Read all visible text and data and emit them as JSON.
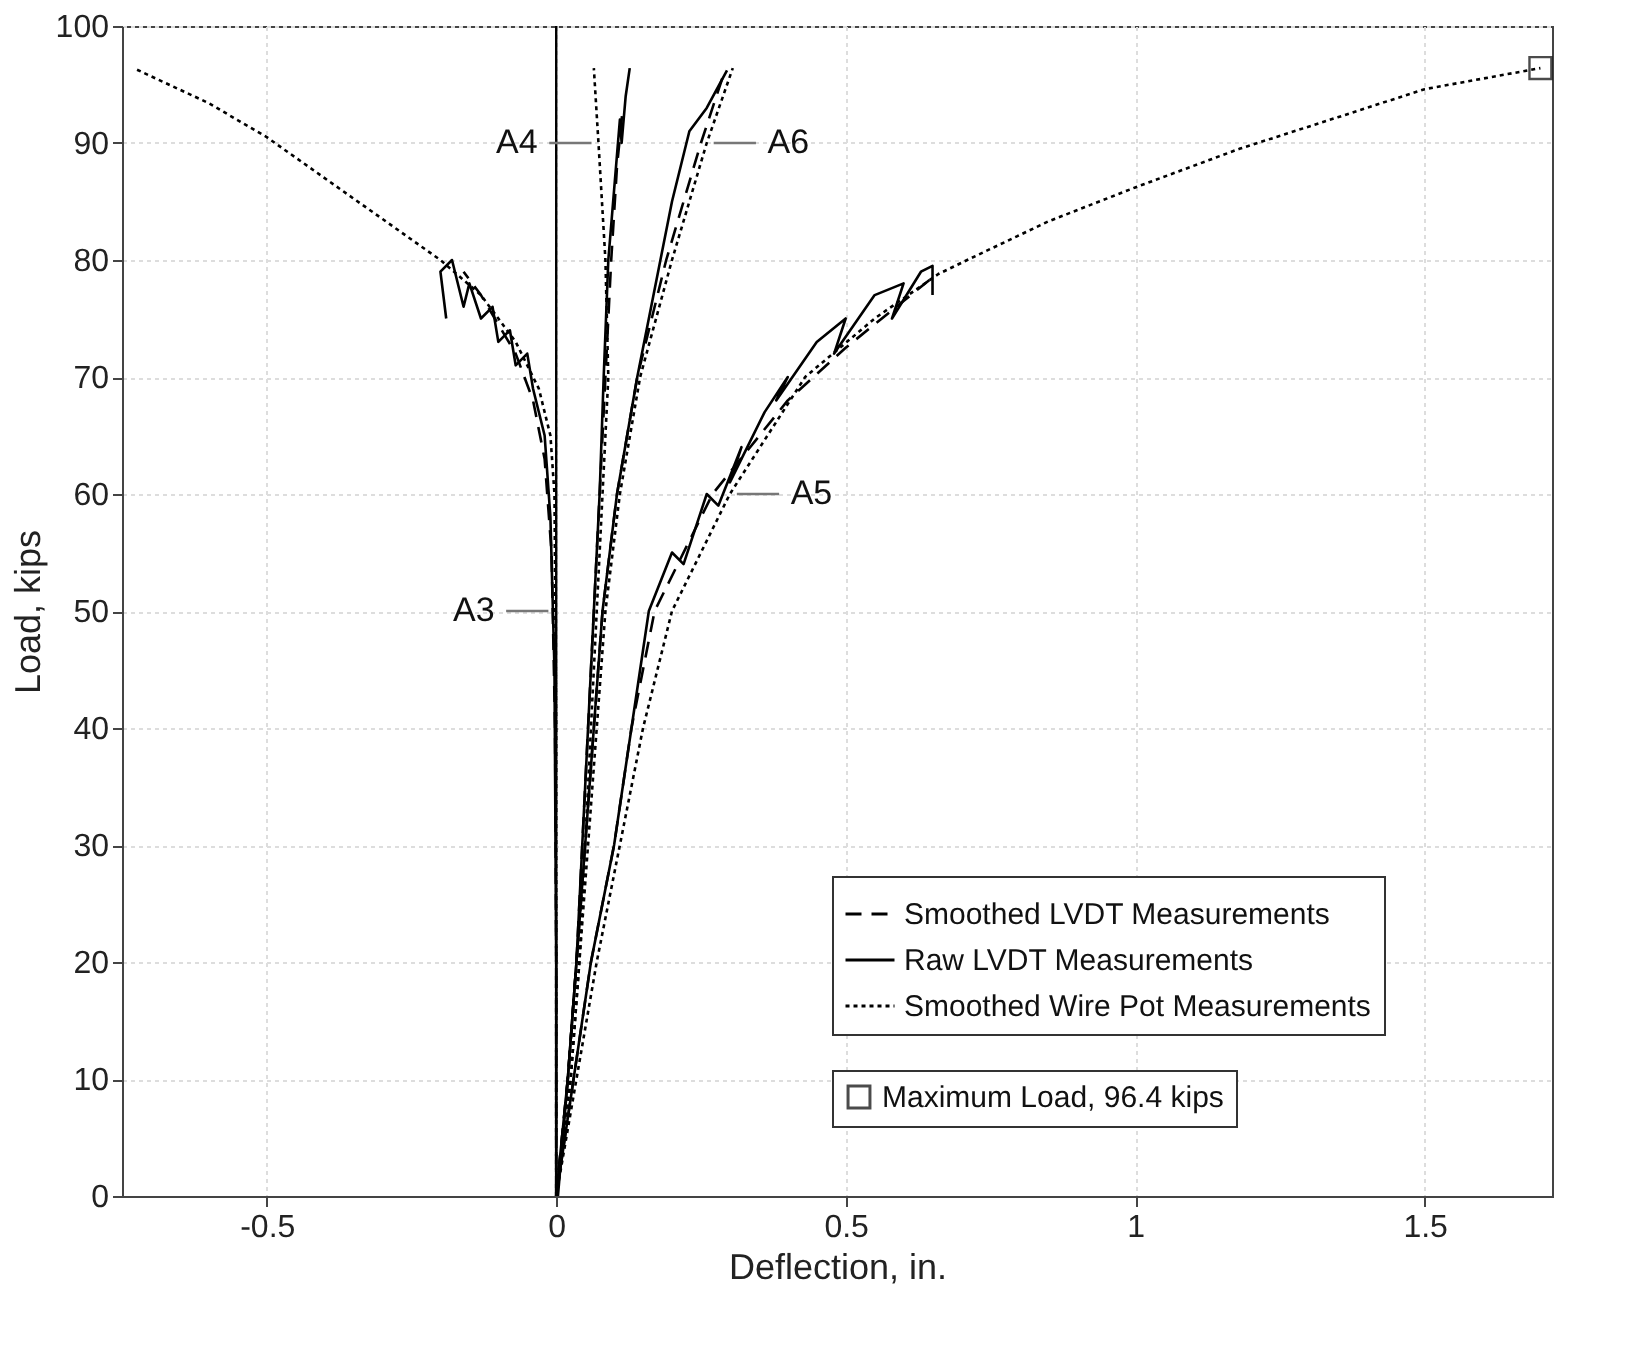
{
  "chart_data": {
    "type": "line",
    "xlabel": "Deflection, in.",
    "ylabel": "Load, kips",
    "xlim": [
      -0.75,
      1.72
    ],
    "ylim": [
      0,
      100
    ],
    "xticks": [
      {
        "value": -0.5,
        "label": "-0.5"
      },
      {
        "value": 0,
        "label": "0"
      },
      {
        "value": 0.5,
        "label": "0.5"
      },
      {
        "value": 1,
        "label": "1"
      },
      {
        "value": 1.5,
        "label": "1.5"
      }
    ],
    "yticks": [
      0,
      10,
      20,
      30,
      40,
      50,
      60,
      70,
      80,
      90,
      100
    ],
    "grid": true,
    "legend": "bottom right",
    "ref_lines": [
      {
        "axis": "x",
        "value": 0,
        "color": "#000000"
      }
    ],
    "annotations": [
      {
        "text": "A3",
        "x": -0.0015,
        "y": 50
      },
      {
        "text": "A4",
        "x": 0.073,
        "y": 90
      },
      {
        "text": "A5",
        "x": 0.3,
        "y": 60
      },
      {
        "text": "A6",
        "x": 0.26,
        "y": 90
      }
    ],
    "series": [
      {
        "name": "Smoothed LVDT Measurements",
        "color": "#000000",
        "line_style": "dashed",
        "x": [
          0,
          0,
          -0.002,
          -0.008,
          -0.02,
          -0.04,
          -0.07,
          -0.1,
          -0.13,
          -0.16
        ],
        "values": [
          0,
          20,
          40,
          55,
          63,
          68,
          72,
          74.5,
          77,
          79
        ]
      },
      {
        "name": "Raw LVDT Measurements",
        "color": "#000000",
        "line_style": "solid",
        "x": [
          0,
          0,
          -0.003,
          -0.01,
          -0.02,
          -0.04,
          -0.05,
          -0.07,
          -0.08,
          -0.1,
          -0.11,
          -0.13,
          -0.15,
          -0.16,
          -0.18,
          -0.2,
          -0.19
        ],
        "values": [
          0,
          20,
          45,
          58,
          65,
          69,
          72,
          71,
          74,
          73,
          76,
          75,
          78,
          76,
          80,
          79,
          75
        ]
      },
      {
        "name": "Smoothed Wire Pot Measurements",
        "color": "#000000",
        "line_style": "dotted",
        "x": [
          0,
          0,
          -0.003,
          -0.01,
          -0.03,
          -0.07,
          -0.13,
          -0.2,
          -0.3,
          -0.4,
          -0.5,
          -0.6,
          -0.73
        ],
        "values": [
          0,
          40,
          60,
          65,
          69,
          73,
          77,
          80,
          83.5,
          87,
          90.5,
          93.4,
          96.4
        ]
      },
      {
        "color": "#000000",
        "line_style": "dashed",
        "x": [
          0,
          0.02,
          0.035,
          0.045,
          0.055,
          0.065,
          0.075,
          0.085,
          0.095,
          0.105,
          0.115
        ],
        "values": [
          0,
          10,
          20,
          30,
          40,
          50,
          60,
          70,
          80,
          88,
          93
        ]
      },
      {
        "color": "#000000",
        "line_style": "solid",
        "x": [
          0,
          0.02,
          0.035,
          0.045,
          0.055,
          0.065,
          0.075,
          0.082,
          0.09,
          0.1,
          0.11,
          0.113,
          0.12,
          0.127
        ],
        "values": [
          0,
          10,
          20,
          30,
          40,
          50,
          60,
          70,
          80,
          86,
          92,
          90,
          94,
          96.4
        ]
      },
      {
        "color": "#000000",
        "line_style": "dotted",
        "x": [
          0,
          0.025,
          0.04,
          0.05,
          0.06,
          0.07,
          0.08,
          0.09,
          0.085,
          0.073,
          0.065
        ],
        "values": [
          0,
          10,
          20,
          30,
          40,
          50,
          60,
          70,
          80,
          90,
          96.4
        ]
      },
      {
        "color": "#000000",
        "line_style": "dashed",
        "x": [
          0,
          0.02,
          0.035,
          0.05,
          0.065,
          0.08,
          0.105,
          0.14,
          0.19,
          0.25,
          0.29
        ],
        "values": [
          0,
          10,
          20,
          30,
          40,
          50,
          60,
          70,
          80,
          90,
          96
        ]
      },
      {
        "color": "#000000",
        "line_style": "solid",
        "x": [
          0.003,
          0.02,
          0.035,
          0.05,
          0.065,
          0.08,
          0.105,
          0.14,
          0.18,
          0.2,
          0.23,
          0.26,
          0.295
        ],
        "values": [
          0,
          10,
          20,
          30,
          40,
          50,
          60,
          70,
          80,
          85,
          91,
          93,
          96.2
        ]
      },
      {
        "color": "#000000",
        "line_style": "dotted",
        "x": [
          0,
          0.025,
          0.04,
          0.055,
          0.07,
          0.085,
          0.11,
          0.145,
          0.2,
          0.26,
          0.305
        ],
        "values": [
          0,
          10,
          20,
          30,
          40,
          50,
          60,
          70,
          80,
          90,
          96.4
        ]
      },
      {
        "color": "#000000",
        "line_style": "dashed",
        "x": [
          0,
          0.03,
          0.06,
          0.1,
          0.13,
          0.17,
          0.27,
          0.4,
          0.5,
          0.6,
          0.65
        ],
        "values": [
          0,
          10,
          20,
          30,
          40,
          50,
          60,
          68,
          72.5,
          76.5,
          78.5
        ]
      },
      {
        "color": "#000000",
        "line_style": "solid",
        "x": [
          0,
          0.03,
          0.06,
          0.1,
          0.13,
          0.16,
          0.2,
          0.22,
          0.26,
          0.28,
          0.32,
          0.3,
          0.36,
          0.4,
          0.38,
          0.45,
          0.5,
          0.48,
          0.55,
          0.6,
          0.58,
          0.63,
          0.65,
          0.65
        ],
        "values": [
          0,
          10,
          20,
          30,
          40,
          50,
          55,
          54,
          60,
          59,
          64,
          61,
          67,
          70,
          68,
          73,
          75,
          72,
          77,
          78,
          75,
          79,
          79.5,
          77
        ]
      },
      {
        "color": "#000000",
        "line_style": "dotted",
        "x": [
          0,
          0.035,
          0.07,
          0.11,
          0.15,
          0.2,
          0.3,
          0.43,
          0.55,
          0.66,
          0.71,
          0.85,
          1.0,
          1.18,
          1.35,
          1.5,
          1.7
        ],
        "values": [
          0,
          10,
          20,
          30,
          40,
          50,
          60,
          70,
          75,
          78.8,
          80,
          83.3,
          86.2,
          89.5,
          92.2,
          94.6,
          96.4
        ]
      },
      {
        "name": "Maximum Load, 96.4 kips",
        "type": "scatter",
        "marker": "square",
        "color": "#000000",
        "x": [
          1.7
        ],
        "values": [
          96.4
        ]
      }
    ]
  }
}
